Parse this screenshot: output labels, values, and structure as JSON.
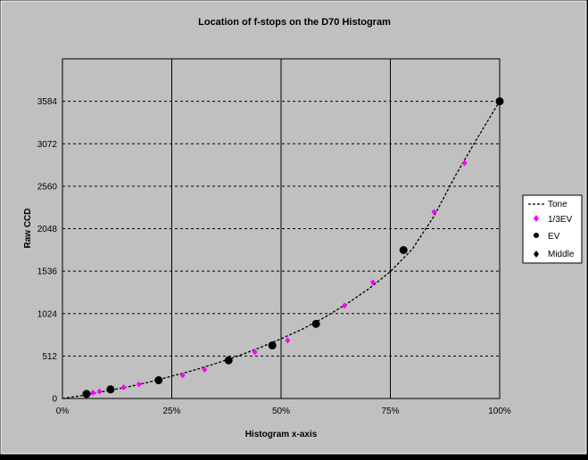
{
  "chart_data": {
    "type": "scatter",
    "title": "Location of f-stops on the D70 Histogram",
    "xlabel": "Histogram x-axis",
    "ylabel": "Raw CCD",
    "xlim": [
      0,
      100
    ],
    "ylim": [
      0,
      4096
    ],
    "x_ticks": [
      "0%",
      "25%",
      "50%",
      "75%",
      "100%"
    ],
    "x_tick_values": [
      0,
      25,
      50,
      75,
      100
    ],
    "y_ticks": [
      "0",
      "512",
      "1024",
      "1536",
      "2048",
      "2560",
      "3072",
      "3584"
    ],
    "y_tick_values": [
      0,
      512,
      1024,
      1536,
      2048,
      2560,
      3072,
      3584
    ],
    "grid": "on",
    "legend_position": "right",
    "colors": {
      "background": "#c0c0c0",
      "third_ev": "#ff00ff",
      "ev": "#000000",
      "tone": "#000000",
      "frame": "#000000"
    },
    "series": [
      {
        "name": "Tone",
        "style": "dashed-line",
        "x": [
          0,
          5,
          10,
          15,
          20,
          25,
          30,
          35,
          40,
          45,
          50,
          55,
          60,
          65,
          70,
          75,
          80,
          85,
          90,
          95,
          100
        ],
        "y": [
          0,
          40,
          90,
          140,
          200,
          270,
          340,
          420,
          510,
          610,
          720,
          840,
          980,
          1140,
          1320,
          1530,
          1800,
          2200,
          2700,
          3150,
          3584
        ]
      },
      {
        "name": "1/3EV",
        "style": "magenta-diamond",
        "x": [
          7,
          8.5,
          14,
          17.5,
          27.5,
          32.5,
          44,
          51.5,
          64.5,
          71,
          85,
          92
        ],
        "y": [
          70,
          85,
          135,
          170,
          280,
          350,
          560,
          700,
          1120,
          1400,
          2250,
          2840
        ]
      },
      {
        "name": "EV",
        "style": "black-circle",
        "x": [
          5.5,
          11,
          22,
          38,
          48,
          58,
          78,
          100
        ],
        "y": [
          55,
          110,
          220,
          460,
          640,
          900,
          1790,
          3584
        ]
      },
      {
        "name": "Middle",
        "style": "black-diamond",
        "x": [],
        "y": []
      }
    ]
  }
}
